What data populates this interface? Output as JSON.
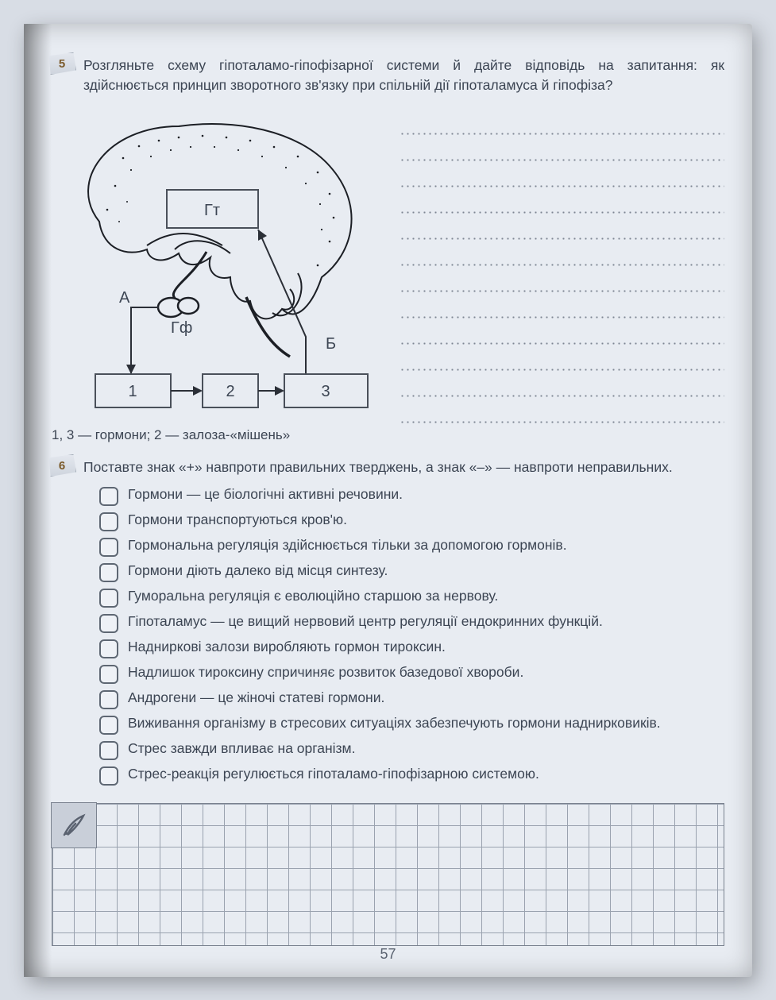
{
  "task5": {
    "number": "5",
    "prompt": "Розгляньте схему гіпоталамо-гіпофізарної системи й дайте відповідь на запитання: як здійснюється принцип зворотного зв'язку при спільній дії гіпоталамуса й гіпофіза?",
    "diagram": {
      "label_gt": "Гт",
      "label_gf": "Гф",
      "label_a": "А",
      "label_b": "Б",
      "box1": "1",
      "box2": "2",
      "box3": "3",
      "brain_fill": "#e8ecf2",
      "brain_stroke": "#1c1f25",
      "box_stroke": "#4a505a",
      "arrow_color": "#2b2f37"
    },
    "legend": "1, 3 — гормони; 2 — залоза-«мішень»",
    "answer_lines": 12
  },
  "task6": {
    "number": "6",
    "prompt": "Поставте знак «+» навпроти правильних тверджень, а знак «–» — навпроти неправильних.",
    "statements": [
      "Гормони — це біологічні активні речовини.",
      "Гормони транспортуються кров'ю.",
      "Гормональна регуляція здійснюється тільки за допомогою гормонів.",
      "Гормони діють далеко від місця синтезу.",
      "Гуморальна регуляція є еволюційно старшою за нервову.",
      "Гіпоталамус — це вищий нервовий центр регуляції ендокринних функцій.",
      "Надниркові залози виробляють гормон тироксин.",
      "Надлишок тироксину спричиняє розвиток базедової хвороби.",
      "Андрогени — це жіночі статеві гормони.",
      "Виживання організму в стресових ситуаціях забезпечують гормони наднирковиків.",
      "Стрес завжди впливає на організм.",
      "Стрес-реакція регулюється гіпоталамо-гіпофізарною системою."
    ]
  },
  "grid": {
    "cols": 32,
    "rows": 6,
    "cell": 27,
    "border_color": "#7a828f"
  },
  "page_number": "57",
  "colors": {
    "page_bg": "#e8ecf2",
    "outer_bg": "#d8dde5",
    "text": "#3c4553",
    "dot": "#7d8592"
  }
}
